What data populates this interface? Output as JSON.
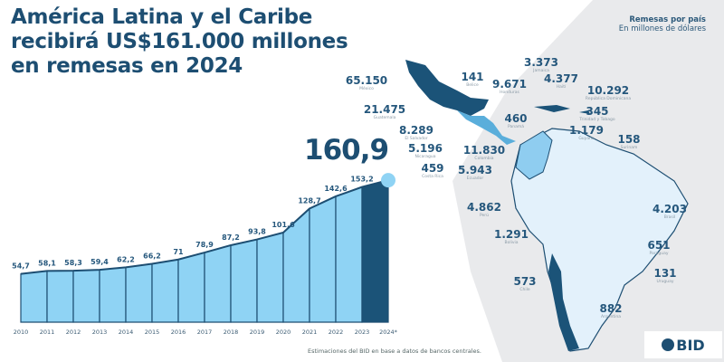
{
  "title_lines": [
    "América Latina y el Caribe",
    "recibirá US$161.000 millones",
    "en remesas en 2024"
  ],
  "legend": {
    "title": "Remesas por país",
    "subtitle": "En millones de dólares"
  },
  "highlight_value": "160,9",
  "footnote": "Estimaciones del BID en base a datos de bancos centrales.",
  "logo": "BID",
  "colors": {
    "dark": "#1b5378",
    "light": "#8fd3f4",
    "map_light": "#e3f1fb",
    "map_mid": "#8fcdf0"
  },
  "chart_data": {
    "type": "area",
    "title": "América Latina y el Caribe recibirá US$161.000 millones en remesas en 2024",
    "x": [
      "2010",
      "2011",
      "2012",
      "2013",
      "2014",
      "2015",
      "2016",
      "2017",
      "2018",
      "2019",
      "2020",
      "2021",
      "2022",
      "2023",
      "2024*"
    ],
    "values": [
      54.7,
      58.1,
      58.3,
      59.4,
      62.2,
      66.2,
      71,
      78.9,
      87.2,
      93.8,
      101.6,
      128.7,
      142.6,
      153.2,
      160.9
    ],
    "labels": [
      "54,7",
      "58,1",
      "58,3",
      "59,4",
      "62,2",
      "66,2",
      "71",
      "78,9",
      "87,2",
      "93,8",
      "101,6",
      "128,7",
      "142,6",
      "153,2",
      "160,9"
    ],
    "ylim": [
      0,
      165
    ],
    "unit": "miles de millones US$"
  },
  "countries": [
    {
      "name": "México",
      "value": "65.150"
    },
    {
      "name": "Belice",
      "value": "141"
    },
    {
      "name": "Honduras",
      "value": "9.671"
    },
    {
      "name": "Jamaica",
      "value": "3.373"
    },
    {
      "name": "Haití",
      "value": "4.377"
    },
    {
      "name": "República Dominicana",
      "value": "10.292"
    },
    {
      "name": "Trinidad y Tobago",
      "value": "345"
    },
    {
      "name": "Guyana",
      "value": "1.179"
    },
    {
      "name": "Surinam",
      "value": "158"
    },
    {
      "name": "Guatemala",
      "value": "21.475"
    },
    {
      "name": "Panamá",
      "value": "460"
    },
    {
      "name": "El Salvador",
      "value": "8.289"
    },
    {
      "name": "Nicaragua",
      "value": "5.196"
    },
    {
      "name": "Colombia",
      "value": "11.830"
    },
    {
      "name": "Costa Rica",
      "value": "459"
    },
    {
      "name": "Ecuador",
      "value": "5.943"
    },
    {
      "name": "Perú",
      "value": "4.862"
    },
    {
      "name": "Brasil",
      "value": "4.203"
    },
    {
      "name": "Bolivia",
      "value": "1.291"
    },
    {
      "name": "Paraguay",
      "value": "651"
    },
    {
      "name": "Uruguay",
      "value": "131"
    },
    {
      "name": "Chile",
      "value": "573"
    },
    {
      "name": "Argentina",
      "value": "882"
    }
  ]
}
